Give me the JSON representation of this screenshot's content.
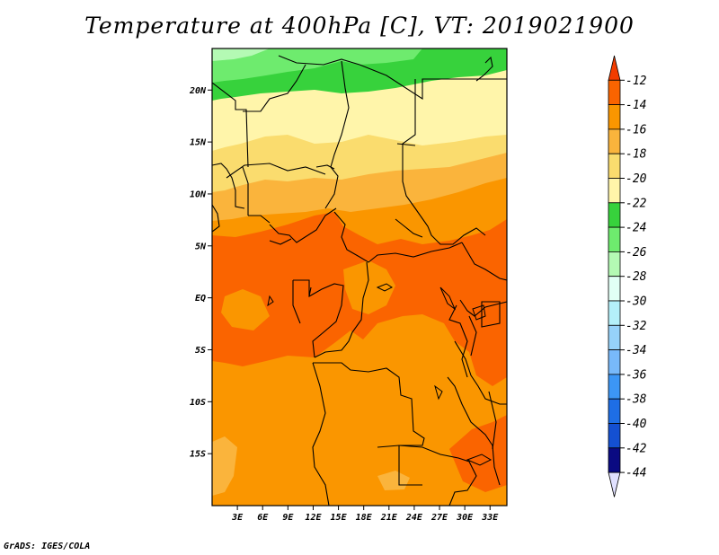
{
  "title": "Temperature at 400hPa [C], VT: 2019021900",
  "footer": "GrADS: IGES/COLA",
  "map": {
    "lon_range": [
      0,
      35
    ],
    "lat_range": [
      -20,
      24
    ],
    "lat_ticks": [
      {
        "value": 20,
        "label": "20N"
      },
      {
        "value": 15,
        "label": "15N"
      },
      {
        "value": 10,
        "label": "10N"
      },
      {
        "value": 5,
        "label": "5N"
      },
      {
        "value": 0,
        "label": "EQ"
      },
      {
        "value": -5,
        "label": "5S"
      },
      {
        "value": -10,
        "label": "10S"
      },
      {
        "value": -15,
        "label": "15S"
      }
    ],
    "lon_ticks": [
      {
        "value": 3,
        "label": "3E"
      },
      {
        "value": 6,
        "label": "6E"
      },
      {
        "value": 9,
        "label": "9E"
      },
      {
        "value": 12,
        "label": "12E"
      },
      {
        "value": 15,
        "label": "15E"
      },
      {
        "value": 18,
        "label": "18E"
      },
      {
        "value": 21,
        "label": "21E"
      },
      {
        "value": 24,
        "label": "24E"
      },
      {
        "value": 27,
        "label": "27E"
      },
      {
        "value": 30,
        "label": "30E"
      },
      {
        "value": 33,
        "label": "33E"
      }
    ]
  },
  "colorbar": {
    "labels": [
      "-12",
      "-14",
      "-16",
      "-18",
      "-20",
      "-22",
      "-24",
      "-26",
      "-28",
      "-30",
      "-32",
      "-34",
      "-36",
      "-38",
      "-40",
      "-42",
      "-44"
    ],
    "colors": [
      "#f23c00",
      "#fa6400",
      "#fa9600",
      "#fab43c",
      "#fadc6e",
      "#fff5aa",
      "#37d23c",
      "#6eeb6e",
      "#b4fab4",
      "#e1fff5",
      "#b4f0fa",
      "#96d2fa",
      "#78b9fa",
      "#3c96f5",
      "#1e6ee6",
      "#1450d2",
      "#0a0a82",
      "#e1e1ff"
    ]
  },
  "field_bands": [
    {
      "temp": "-26",
      "color": "#6eeb6e"
    },
    {
      "temp": "-24",
      "color": "#37d23c"
    },
    {
      "temp": "-22",
      "color": "#fff5aa"
    },
    {
      "temp": "-20",
      "color": "#fadc6e"
    },
    {
      "temp": "-18",
      "color": "#fab43c"
    },
    {
      "temp": "-16",
      "color": "#fa9600"
    },
    {
      "temp": "-14",
      "color": "#fa6400"
    }
  ]
}
